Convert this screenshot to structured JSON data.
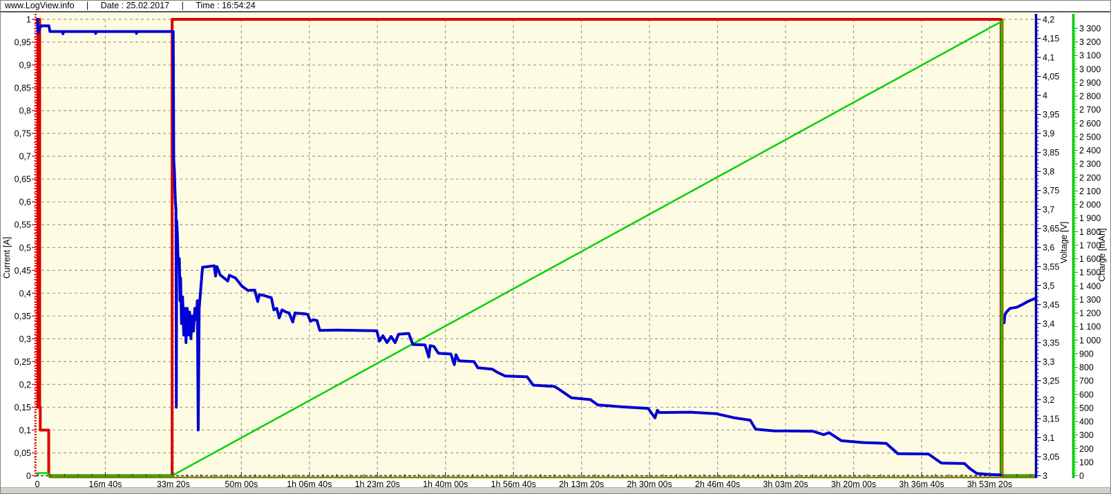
{
  "window": {
    "header": {
      "site": "www.LogView.info",
      "pipe": "|",
      "date": "Date : 25.02.2017",
      "time": "Time : 16:54:24"
    }
  },
  "chart_data": {
    "type": "line",
    "title": "",
    "grid": true,
    "legend_position": "none",
    "style": {
      "plot_bg": "#fdfce2",
      "grid_color": "#9a9a9a",
      "x_axis_color": "#333333",
      "end_marker_color": "#808000",
      "baseline_color": "#808000",
      "label_color": "#000000"
    },
    "x_axis": {
      "label": "",
      "unit": "s",
      "range": [
        0,
        14680
      ],
      "minor_step": 200,
      "tick_values": [
        0,
        1000,
        2000,
        3000,
        4000,
        5000,
        6000,
        7000,
        8000,
        9000,
        10000,
        11000,
        12000,
        13000,
        14000
      ],
      "tick_labels": [
        "0",
        "16m 40s",
        "33m 20s",
        "50m 00s",
        "1h 06m 40s",
        "1h 23m 20s",
        "1h 40m 00s",
        "1h 56m 40s",
        "2h 13m 20s",
        "2h 30m 00s",
        "2h 46m 40s",
        "3h 03m 20s",
        "3h 20m 00s",
        "3h 36m 40s",
        "3h 53m 20s"
      ]
    },
    "left_axis": {
      "label": "Current [A]",
      "color": "#dd0000",
      "range": [
        0,
        1
      ],
      "minor_step": 0.01,
      "tick_values": [
        1,
        0.95,
        0.9,
        0.85,
        0.8,
        0.75,
        0.7,
        0.65,
        0.6,
        0.55,
        0.5,
        0.45,
        0.4,
        0.35,
        0.3,
        0.25,
        0.2,
        0.15,
        0.1,
        0.05,
        0
      ],
      "tick_labels": [
        "1",
        "0,95",
        "0,9",
        "0,85",
        "0,8",
        "0,75",
        "0,7",
        "0,65",
        "0,6",
        "0,55",
        "0,5",
        "0,45",
        "0,4",
        "0,35",
        "0,3",
        "0,25",
        "0,2",
        "0,15",
        "0,1",
        "0,05",
        "0"
      ]
    },
    "right_axis_voltage": {
      "label": "Voltage [V]",
      "color": "#0000b0",
      "range": [
        3,
        4.2
      ],
      "minor_step": 0.01,
      "tick_values": [
        4.2,
        4.15,
        4.1,
        4.05,
        4,
        3.95,
        3.9,
        3.85,
        3.8,
        3.75,
        3.7,
        3.65,
        3.6,
        3.55,
        3.5,
        3.45,
        3.4,
        3.35,
        3.3,
        3.25,
        3.2,
        3.15,
        3.1,
        3.05,
        3
      ],
      "tick_labels": [
        "4,2",
        "4,15",
        "4,1",
        "4,05",
        "4",
        "3,95",
        "3,9",
        "3,85",
        "3,8",
        "3,75",
        "3,7",
        "3,65",
        "3,6",
        "3,55",
        "3,5",
        "3,45",
        "3,4",
        "3,35",
        "3,3",
        "3,25",
        "3,2",
        "3,15",
        "3,1",
        "3,05",
        "3"
      ]
    },
    "right_axis_charge": {
      "label": "Charge [mAh]",
      "color": "#00cc00",
      "range": [
        0,
        3300
      ],
      "minor_step": 20,
      "tick_values": [
        3300,
        3200,
        3100,
        3000,
        2900,
        2800,
        2700,
        2600,
        2500,
        2400,
        2300,
        2200,
        2100,
        2000,
        1900,
        1800,
        1700,
        1600,
        1500,
        1400,
        1300,
        1200,
        1100,
        1000,
        900,
        800,
        700,
        600,
        500,
        400,
        300,
        200,
        100,
        0
      ],
      "tick_labels": [
        "3 300",
        "3 200",
        "3 100",
        "3 000",
        "2 900",
        "2 800",
        "2 700",
        "2 600",
        "2 500",
        "2 400",
        "2 300",
        "2 200",
        "2 100",
        "2 000",
        "1 900",
        "1 800",
        "1 700",
        "1 600",
        "1 500",
        "1 400",
        "1 300",
        "1 200",
        "1 100",
        "1 000",
        "900",
        "800",
        "700",
        "600",
        "500",
        "400",
        "300",
        "200",
        "100",
        "0"
      ]
    },
    "series": [
      {
        "name": "Current",
        "axis": "left",
        "color": "#dd0000",
        "width": 4,
        "segments": [
          [
            [
              0,
              0.15
            ],
            [
              8,
              0.15
            ],
            [
              8,
              1.0
            ],
            [
              36,
              1.0
            ],
            [
              36,
              0.15
            ],
            [
              44,
              0.15
            ],
            [
              44,
              0.1
            ],
            [
              168,
              0.1
            ],
            [
              168,
              0
            ],
            [
              1982,
              0
            ],
            [
              1982,
              1.0
            ],
            [
              14168,
              1.0
            ],
            [
              14168,
              0
            ],
            [
              14678,
              0
            ]
          ]
        ]
      },
      {
        "name": "Charge",
        "axis": "charge",
        "color": "#00d200",
        "width": 2.5,
        "segments": [
          [
            [
              0,
              0
            ],
            [
              26,
              20
            ],
            [
              155,
              20
            ],
            [
              163,
              0
            ],
            [
              1982,
              0
            ],
            [
              14172,
              3350
            ],
            [
              14172,
              0
            ],
            [
              14678,
              0
            ]
          ]
        ]
      },
      {
        "name": "Voltage",
        "axis": "voltage",
        "color": "#0000d2",
        "width": 4,
        "segments": [
          [
            [
              0,
              4.2
            ],
            [
              12,
              4.164
            ],
            [
              28,
              4.174
            ],
            [
              55,
              4.183
            ],
            [
              170,
              4.183
            ],
            [
              186,
              4.168
            ],
            [
              370,
              4.168
            ],
            [
              378,
              4.162
            ],
            [
              386,
              4.168
            ],
            [
              850,
              4.168
            ],
            [
              858,
              4.163
            ],
            [
              866,
              4.168
            ],
            [
              1450,
              4.168
            ],
            [
              1458,
              4.163
            ],
            [
              1466,
              4.168
            ],
            [
              1998,
              4.168
            ],
            [
              2006,
              3.83
            ],
            [
              2016,
              3.8
            ],
            [
              2022,
              3.76
            ],
            [
              2030,
              3.72
            ],
            [
              2038,
              3.7
            ],
            [
              2044,
              3.18
            ],
            [
              2050,
              3.67
            ],
            [
              2058,
              3.64
            ],
            [
              2068,
              3.575
            ],
            [
              2088,
              3.57
            ],
            [
              2098,
              3.46
            ],
            [
              2106,
              3.52
            ],
            [
              2120,
              3.4
            ],
            [
              2136,
              3.47
            ],
            [
              2152,
              3.37
            ],
            [
              2168,
              3.44
            ],
            [
              2186,
              3.35
            ],
            [
              2204,
              3.44
            ],
            [
              2222,
              3.37
            ],
            [
              2240,
              3.43
            ],
            [
              2258,
              3.36
            ],
            [
              2276,
              3.42
            ],
            [
              2296,
              3.38
            ],
            [
              2316,
              3.44
            ],
            [
              2336,
              3.41
            ],
            [
              2352,
              3.46
            ],
            [
              2366,
              3.12
            ],
            [
              2380,
              3.44
            ],
            [
              2402,
              3.49
            ],
            [
              2428,
              3.548
            ],
            [
              2600,
              3.552
            ],
            [
              2620,
              3.525
            ],
            [
              2640,
              3.55
            ],
            [
              2688,
              3.528
            ],
            [
              2800,
              3.512
            ],
            [
              2824,
              3.527
            ],
            [
              2912,
              3.52
            ],
            [
              3010,
              3.498
            ],
            [
              3096,
              3.487
            ],
            [
              3196,
              3.488
            ],
            [
              3240,
              3.458
            ],
            [
              3264,
              3.476
            ],
            [
              3330,
              3.474
            ],
            [
              3400,
              3.47
            ],
            [
              3440,
              3.468
            ],
            [
              3478,
              3.436
            ],
            [
              3520,
              3.44
            ],
            [
              3556,
              3.415
            ],
            [
              3596,
              3.436
            ],
            [
              3660,
              3.43
            ],
            [
              3700,
              3.428
            ],
            [
              3755,
              3.404
            ],
            [
              3788,
              3.428
            ],
            [
              3830,
              3.427
            ],
            [
              3920,
              3.426
            ],
            [
              3975,
              3.424
            ],
            [
              4015,
              3.406
            ],
            [
              4060,
              3.41
            ],
            [
              4110,
              3.408
            ],
            [
              4152,
              3.382
            ],
            [
              4400,
              3.383
            ],
            [
              4700,
              3.382
            ],
            [
              4990,
              3.381
            ],
            [
              5030,
              3.354
            ],
            [
              5080,
              3.368
            ],
            [
              5140,
              3.35
            ],
            [
              5200,
              3.366
            ],
            [
              5260,
              3.35
            ],
            [
              5310,
              3.372
            ],
            [
              5460,
              3.374
            ],
            [
              5520,
              3.345
            ],
            [
              5700,
              3.344
            ],
            [
              5755,
              3.312
            ],
            [
              5775,
              3.342
            ],
            [
              5830,
              3.34
            ],
            [
              5896,
              3.322
            ],
            [
              6080,
              3.32
            ],
            [
              6130,
              3.292
            ],
            [
              6155,
              3.318
            ],
            [
              6200,
              3.302
            ],
            [
              6420,
              3.3
            ],
            [
              6475,
              3.284
            ],
            [
              6690,
              3.28
            ],
            [
              6760,
              3.272
            ],
            [
              6880,
              3.262
            ],
            [
              7200,
              3.26
            ],
            [
              7290,
              3.238
            ],
            [
              7600,
              3.235
            ],
            [
              7680,
              3.226
            ],
            [
              7850,
              3.205
            ],
            [
              8130,
              3.2
            ],
            [
              8240,
              3.186
            ],
            [
              8600,
              3.181
            ],
            [
              8980,
              3.177
            ],
            [
              9080,
              3.152
            ],
            [
              9115,
              3.172
            ],
            [
              9145,
              3.166
            ],
            [
              9600,
              3.167
            ],
            [
              9980,
              3.163
            ],
            [
              10250,
              3.152
            ],
            [
              10480,
              3.146
            ],
            [
              10560,
              3.122
            ],
            [
              10830,
              3.118
            ],
            [
              11400,
              3.117
            ],
            [
              11560,
              3.108
            ],
            [
              11640,
              3.113
            ],
            [
              11820,
              3.092
            ],
            [
              12150,
              3.087
            ],
            [
              12480,
              3.085
            ],
            [
              12650,
              3.058
            ],
            [
              13100,
              3.057
            ],
            [
              13290,
              3.033
            ],
            [
              13630,
              3.032
            ],
            [
              13700,
              3.02
            ],
            [
              13810,
              3.006
            ],
            [
              14000,
              3.003
            ],
            [
              14165,
              3.002
            ]
          ],
          [
            [
              14212,
              3.402
            ],
            [
              14222,
              3.422
            ],
            [
              14245,
              3.43
            ],
            [
              14300,
              3.44
            ],
            [
              14400,
              3.443
            ],
            [
              14480,
              3.45
            ],
            [
              14560,
              3.458
            ],
            [
              14640,
              3.464
            ],
            [
              14678,
              3.467
            ]
          ]
        ]
      }
    ],
    "end_marker": {
      "t": 14192
    },
    "baseline": {
      "t_start": 173,
      "t_end": 14680
    }
  }
}
